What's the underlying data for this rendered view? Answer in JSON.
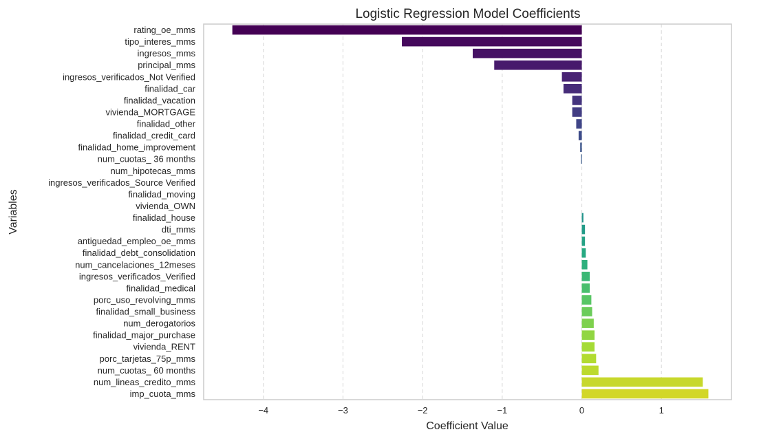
{
  "chart_data": {
    "type": "bar",
    "orientation": "horizontal",
    "title": "Logistic Regression Model Coefficients",
    "xlabel": "Coefficient Value",
    "ylabel": "Variables",
    "xlim": [
      -4.75,
      1.88
    ],
    "xticks": [
      -4,
      -3,
      -2,
      -1,
      0,
      1
    ],
    "xtick_labels": [
      "−4",
      "−3",
      "−2",
      "−1",
      "0",
      "1"
    ],
    "grid": "vertical dashed",
    "colormap": "viridis",
    "categories": [
      "rating_oe_mms",
      "tipo_interes_mms",
      "ingresos_mms",
      "principal_mms",
      "ingresos_verificados_Not Verified",
      "finalidad_car",
      "finalidad_vacation",
      "vivienda_MORTGAGE",
      "finalidad_other",
      "finalidad_credit_card",
      "finalidad_home_improvement",
      "num_cuotas_ 36 months",
      "num_hipotecas_mms",
      "ingresos_verificados_Source Verified",
      "finalidad_moving",
      "vivienda_OWN",
      "finalidad_house",
      "dti_mms",
      "antiguedad_empleo_oe_mms",
      "finalidad_debt_consolidation",
      "num_cancelaciones_12meses",
      "ingresos_verificados_Verified",
      "finalidad_medical",
      "porc_uso_revolving_mms",
      "finalidad_small_business",
      "num_derogatorios",
      "finalidad_major_purchase",
      "vivienda_RENT",
      "porc_tarjetas_75p_mms",
      "num_cuotas_ 60 months",
      "num_lineas_credito_mms",
      "imp_cuota_mms"
    ],
    "values": [
      -4.39,
      -2.26,
      -1.37,
      -1.1,
      -0.25,
      -0.23,
      -0.12,
      -0.12,
      -0.07,
      -0.04,
      -0.02,
      -0.01,
      0.0,
      0.0,
      0.0,
      0.0,
      0.02,
      0.04,
      0.04,
      0.05,
      0.07,
      0.1,
      0.1,
      0.12,
      0.13,
      0.15,
      0.16,
      0.16,
      0.18,
      0.21,
      1.52,
      1.59
    ]
  }
}
